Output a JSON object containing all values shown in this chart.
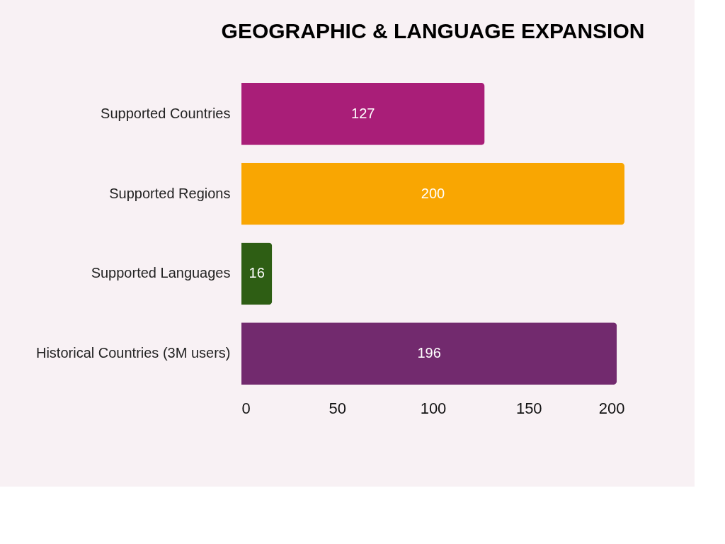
{
  "chart_data": {
    "type": "bar",
    "orientation": "horizontal",
    "title": "GEOGRAPHIC & LANGUAGE EXPANSION",
    "categories": [
      "Supported Countries",
      "Supported Regions",
      "Supported Languages",
      "Historical Countries (3M users)"
    ],
    "values": [
      127,
      200,
      16,
      196
    ],
    "colors": [
      "#a91e78",
      "#f9a602",
      "#2e5e14",
      "#722a6e"
    ],
    "xlim": [
      0,
      200
    ],
    "xticks": [
      0,
      50,
      100,
      150,
      200
    ],
    "grid": false,
    "data_labels": true
  }
}
